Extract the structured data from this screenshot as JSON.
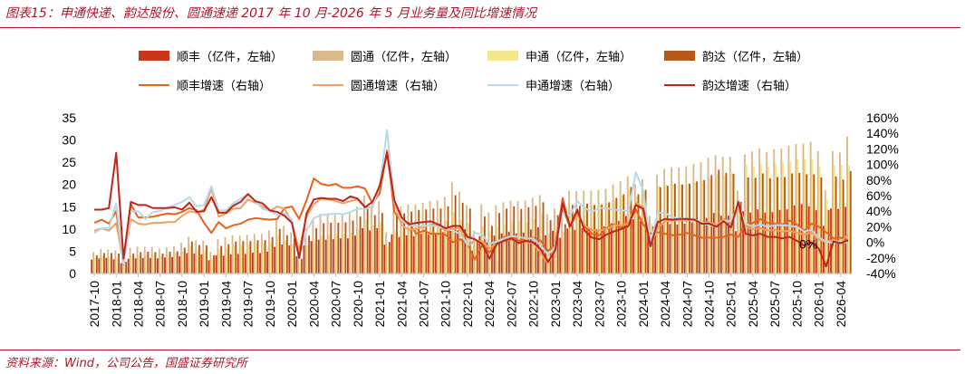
{
  "title": "图表15：申通快递、韵达股份、圆通速递 2017 年 10 月-2026 年 5 月业务量及同比增速情况",
  "source": "资料来源：Wind，公司公告，国盛证券研究所",
  "colors": {
    "sf_bar": "#c8361b",
    "yto_bar": "#d9b98a",
    "sto_bar": "#f5e58c",
    "yd_bar": "#b7571a",
    "sf_line": "#e8621c",
    "yto_line": "#f1a05a",
    "sto_line": "#b9d8ea",
    "yd_line": "#c0251b",
    "accent": "#b0162b"
  },
  "chart_data": {
    "type": "bar",
    "x": [
      "2017-10",
      "2017-11",
      "2017-12",
      "2018-01",
      "2018-02",
      "2018-03",
      "2018-04",
      "2018-05",
      "2018-06",
      "2018-07",
      "2018-08",
      "2018-09",
      "2018-10",
      "2018-11",
      "2018-12",
      "2019-01",
      "2019-02",
      "2019-03",
      "2019-04",
      "2019-05",
      "2019-06",
      "2019-07",
      "2019-08",
      "2019-09",
      "2019-10",
      "2019-11",
      "2019-12",
      "2020-01",
      "2020-02",
      "2020-03",
      "2020-04",
      "2020-05",
      "2020-06",
      "2020-07",
      "2020-08",
      "2020-09",
      "2020-10",
      "2020-11",
      "2020-12",
      "2021-01",
      "2021-02",
      "2021-03",
      "2021-04",
      "2021-05",
      "2021-06",
      "2021-07",
      "2021-08",
      "2021-09",
      "2021-10",
      "2021-11",
      "2021-12",
      "2022-01",
      "2022-02",
      "2022-03",
      "2022-04",
      "2022-05",
      "2022-06",
      "2022-07",
      "2022-08",
      "2022-09",
      "2022-10",
      "2022-11",
      "2022-12",
      "2023-01",
      "2023-02",
      "2023-03",
      "2023-04",
      "2023-05",
      "2023-06",
      "2023-07",
      "2023-08",
      "2023-09",
      "2023-10",
      "2023-11",
      "2023-12",
      "2024-01",
      "2024-02",
      "2024-03",
      "2024-04",
      "2024-05",
      "2024-06",
      "2024-07",
      "2024-08",
      "2024-09",
      "2024-10",
      "2024-11",
      "2024-12",
      "2025-01",
      "2025-02",
      "2025-03",
      "2025-04",
      "2025-05",
      "2025-06",
      "2025-07",
      "2025-08",
      "2025-09",
      "2025-10",
      "2025-11",
      "2025-12",
      "2026-01",
      "2026-02",
      "2026-03",
      "2026-04",
      "2026-05"
    ],
    "x_tick_labels": [
      "2017-10",
      "2018-01",
      "2018-04",
      "2018-07",
      "2018-10",
      "2019-01",
      "2019-04",
      "2019-07",
      "2019-10",
      "2020-01",
      "2020-04",
      "2020-07",
      "2020-10",
      "2021-01",
      "2021-04",
      "2021-07",
      "2021-10",
      "2022-01",
      "2022-04",
      "2022-07",
      "2022-10",
      "2023-01",
      "2023-04",
      "2023-07",
      "2023-10",
      "2024-01",
      "2024-04",
      "2024-07",
      "2024-10",
      "2025-01",
      "2025-04",
      "2025-07",
      "2025-10",
      "2026-01",
      "2026-04"
    ],
    "y_left": {
      "ylim": [
        0,
        35
      ],
      "ticks": [
        "0",
        "5",
        "10",
        "15",
        "20",
        "25",
        "30",
        "35"
      ]
    },
    "y_right": {
      "ylim": [
        -40,
        160
      ],
      "ticks": [
        "-40%",
        "-20%",
        "0%",
        "20%",
        "40%",
        "60%",
        "80%",
        "100%",
        "120%",
        "140%",
        "160%"
      ]
    },
    "annotation": "0%",
    "legend": {
      "placement": "top",
      "items": [
        {
          "label": "顺丰（亿件，左轴）",
          "kind": "bar",
          "color": "#c8361b"
        },
        {
          "label": "圆通（亿件，左轴）",
          "kind": "bar",
          "color": "#d9b98a"
        },
        {
          "label": "申通（亿件，左轴）",
          "kind": "bar",
          "color": "#f5e58c"
        },
        {
          "label": "韵达（亿件，左轴）",
          "kind": "bar",
          "color": "#b7571a"
        },
        {
          "label": "顺丰增速（右轴）",
          "kind": "line",
          "color": "#e8621c"
        },
        {
          "label": "圆通增速（右轴）",
          "kind": "line",
          "color": "#f1a05a"
        },
        {
          "label": "申通增速（右轴）",
          "kind": "line",
          "color": "#b9d8ea"
        },
        {
          "label": "韵达增速（右轴）",
          "kind": "line",
          "color": "#c0251b"
        }
      ]
    },
    "bar_series": [
      {
        "name": "顺丰（亿件，左轴）",
        "color": "#c8361b",
        "values": [
          3.1,
          3.4,
          3.5,
          3.2,
          2.3,
          3.3,
          3.4,
          3.5,
          3.5,
          3.4,
          3.6,
          3.7,
          3.9,
          4.6,
          4.5,
          4.3,
          3.0,
          4.1,
          4.0,
          4.3,
          4.4,
          4.4,
          4.7,
          4.6,
          4.9,
          6.0,
          6.5,
          6.3,
          3.9,
          6.3,
          7.3,
          7.6,
          7.6,
          7.7,
          7.9,
          7.9,
          8.5,
          10.2,
          9.7,
          10.2,
          6.5,
          8.8,
          8.2,
          8.6,
          8.4,
          8.9,
          8.8,
          8.8,
          9.3,
          10.2,
          9.7,
          10.0,
          5.1,
          8.4,
          7.1,
          8.5,
          9.0,
          9.4,
          9.0,
          9.2,
          9.9,
          10.4,
          8.6,
          9.6,
          8.0,
          10.1,
          9.8,
          10.2,
          10.0,
          10.0,
          10.6,
          11.3,
          11.8,
          12.9,
          12.2,
          11.8,
          8.9,
          11.4,
          10.9,
          11.1,
          11.0,
          11.2,
          11.5,
          11.3,
          12.5,
          13.6,
          13.0,
          13.0,
          9.5,
          14.0,
          13.7,
          14.4,
          13.7,
          13.8,
          14.3,
          14.4,
          15.3,
          15.6,
          15.1,
          14.2,
          10.7,
          14.6,
          14.5,
          15.0
        ]
      },
      {
        "name": "圆通（亿件，左轴）",
        "color": "#d9b98a",
        "values": [
          4.8,
          5.5,
          5.4,
          5.2,
          2.9,
          5.8,
          6.0,
          6.0,
          5.9,
          5.6,
          5.9,
          6.1,
          6.9,
          8.3,
          7.5,
          7.4,
          4.9,
          7.7,
          8.2,
          8.6,
          8.5,
          8.7,
          8.9,
          8.9,
          9.7,
          12.1,
          10.7,
          9.3,
          4.4,
          10.2,
          12.3,
          13.4,
          13.2,
          13.2,
          13.3,
          13.6,
          15.0,
          17.5,
          15.5,
          16.3,
          9.3,
          15.3,
          15.0,
          15.5,
          15.5,
          15.9,
          16.3,
          16.4,
          17.2,
          20.5,
          18.4,
          15.4,
          9.6,
          15.5,
          13.7,
          15.3,
          16.0,
          16.4,
          16.3,
          16.4,
          17.0,
          17.6,
          13.3,
          14.6,
          13.6,
          18.6,
          18.5,
          18.6,
          18.6,
          18.8,
          19.0,
          20.0,
          20.7,
          21.8,
          20.1,
          21.2,
          12.9,
          22.2,
          23.5,
          23.9,
          23.8,
          24.1,
          24.6,
          25.0,
          26.0,
          26.6,
          26.2,
          26.2,
          18.6,
          26.7,
          27.4,
          28.1,
          27.3,
          27.9,
          28.1,
          28.7,
          29.1,
          29.2,
          29.6,
          27.5,
          18.7,
          27.5,
          27.2,
          30.8
        ]
      },
      {
        "name": "申通（亿件，左轴）",
        "color": "#f5e58c",
        "values": [
          3.5,
          3.9,
          3.7,
          3.5,
          1.9,
          3.9,
          4.1,
          4.2,
          4.1,
          4.0,
          4.3,
          4.6,
          5.0,
          6.2,
          5.4,
          5.2,
          3.2,
          5.5,
          5.8,
          6.3,
          6.4,
          6.5,
          6.6,
          6.6,
          7.0,
          8.4,
          7.4,
          6.7,
          2.5,
          6.3,
          7.6,
          8.5,
          8.7,
          8.9,
          9.0,
          9.2,
          10.0,
          12.0,
          10.8,
          11.5,
          6.1,
          9.7,
          9.7,
          10.4,
          10.5,
          10.8,
          11.0,
          11.0,
          11.8,
          13.8,
          12.0,
          11.2,
          6.8,
          10.7,
          9.5,
          10.5,
          11.0,
          11.7,
          11.8,
          11.6,
          12.4,
          13.3,
          9.1,
          10.6,
          9.4,
          14.3,
          14.5,
          15.1,
          15.3,
          15.5,
          15.8,
          16.6,
          17.5,
          18.7,
          17.3,
          17.7,
          11.2,
          19.7,
          20.0,
          20.0,
          20.0,
          20.1,
          20.4,
          20.8,
          21.4,
          22.5,
          22.0,
          22.7,
          16.5,
          24.5,
          24.0,
          24.6,
          23.9,
          24.5,
          24.9,
          25.1,
          25.7,
          25.7,
          25.6,
          24.1,
          16.6,
          24.3,
          24.4,
          24.3
        ]
      },
      {
        "name": "韵达（亿件，左轴）",
        "color": "#b7571a",
        "values": [
          4.1,
          4.6,
          4.6,
          4.5,
          2.6,
          4.5,
          4.8,
          4.9,
          4.8,
          4.5,
          4.9,
          5.0,
          5.8,
          7.2,
          6.4,
          6.3,
          4.1,
          6.2,
          6.6,
          7.2,
          7.3,
          7.3,
          7.5,
          7.5,
          8.2,
          10.0,
          8.6,
          7.9,
          3.3,
          8.5,
          10.2,
          11.3,
          11.4,
          11.4,
          11.5,
          11.9,
          12.8,
          14.5,
          13.1,
          13.6,
          7.1,
          13.1,
          13.5,
          13.9,
          14.3,
          14.4,
          14.6,
          14.6,
          15.1,
          17.6,
          15.9,
          14.6,
          7.4,
          12.8,
          10.7,
          13.6,
          14.6,
          15.1,
          14.5,
          14.9,
          15.2,
          16.0,
          12.0,
          13.1,
          11.1,
          15.4,
          15.2,
          15.7,
          15.4,
          15.5,
          16.0,
          17.0,
          17.8,
          19.4,
          17.8,
          18.8,
          10.6,
          19.4,
          19.7,
          20.2,
          20.0,
          20.2,
          20.7,
          21.0,
          22.1,
          23.3,
          22.6,
          22.4,
          16.1,
          21.6,
          21.5,
          22.5,
          21.4,
          21.7,
          21.7,
          22.5,
          22.6,
          22.3,
          22.3,
          21.6,
          14.3,
          21.8,
          21.1,
          23.0
        ]
      }
    ],
    "line_series": [
      {
        "name": "顺丰增速（右轴）",
        "color": "#e8621c",
        "values": [
          25,
          29,
          24,
          40,
          -29,
          49,
          32,
          32,
          33,
          35,
          37,
          36,
          39,
          44,
          41,
          25,
          12,
          26,
          18,
          22,
          24,
          29,
          31,
          30,
          29,
          30,
          44,
          46,
          30,
          54,
          82,
          75,
          73,
          75,
          70,
          70,
          72,
          69,
          50,
          63,
          118,
          39,
          26,
          25,
          11,
          15,
          11,
          11,
          10,
          0,
          4,
          -2,
          -22,
          -4,
          -13,
          -1,
          7,
          7,
          2,
          5,
          6,
          2,
          -11,
          -4,
          57,
          20,
          38,
          20,
          11,
          9,
          18,
          23,
          19,
          24,
          42,
          23,
          11,
          13,
          11,
          9,
          10,
          12,
          9,
          6,
          6,
          6,
          7,
          10,
          7,
          23,
          25,
          30,
          25,
          24,
          23,
          28,
          23,
          15,
          24,
          20,
          13,
          5,
          6,
          1
        ]
      },
      {
        "name": "圆通增速（右轴）",
        "color": "#f1a05a",
        "values": [
          15,
          18,
          15,
          25,
          -26,
          30,
          24,
          23,
          25,
          25,
          26,
          26,
          34,
          40,
          38,
          42,
          69,
          33,
          37,
          43,
          44,
          55,
          51,
          46,
          40,
          46,
          43,
          26,
          -10,
          33,
          49,
          56,
          55,
          53,
          50,
          53,
          55,
          45,
          45,
          75,
          112,
          50,
          22,
          16,
          17,
          20,
          23,
          21,
          15,
          17,
          19,
          -6,
          3,
          1,
          -8,
          -1,
          3,
          3,
          0,
          0,
          -1,
          -14,
          -28,
          -5,
          42,
          20,
          35,
          22,
          16,
          15,
          17,
          22,
          22,
          24,
          51,
          45,
          -5,
          19,
          27,
          28,
          28,
          28,
          30,
          25,
          26,
          22,
          30,
          24,
          44,
          20,
          17,
          18,
          15,
          16,
          14,
          15,
          12,
          10,
          13,
          3,
          1,
          3,
          0,
          10
        ]
      },
      {
        "name": "申通增速（右轴）",
        "color": "#b9d8ea",
        "values": [
          12,
          18,
          18,
          50,
          -28,
          40,
          40,
          30,
          39,
          40,
          45,
          48,
          52,
          58,
          46,
          48,
          72,
          41,
          41,
          50,
          56,
          62,
          53,
          43,
          40,
          35,
          37,
          29,
          -22,
          15,
          31,
          35,
          36,
          37,
          36,
          39,
          43,
          43,
          46,
          71,
          144,
          54,
          28,
          22,
          21,
          21,
          22,
          20,
          18,
          15,
          11,
          -3,
          12,
          10,
          -2,
          1,
          5,
          8,
          7,
          5,
          5,
          -4,
          -16,
          -5,
          38,
          34,
          53,
          44,
          39,
          44,
          44,
          42,
          41,
          40,
          90,
          67,
          0,
          38,
          38,
          32,
          31,
          30,
          29,
          25,
          22,
          20,
          27,
          28,
          47,
          24,
          20,
          23,
          20,
          22,
          22,
          21,
          20,
          14,
          16,
          6,
          1,
          -1,
          2,
          -1
        ]
      },
      {
        "name": "韵达增速（右轴）",
        "color": "#c0251b",
        "values": [
          42,
          42,
          44,
          115,
          -21,
          52,
          48,
          48,
          44,
          44,
          44,
          45,
          42,
          51,
          39,
          40,
          58,
          38,
          38,
          47,
          52,
          62,
          53,
          50,
          41,
          39,
          34,
          25,
          -20,
          37,
          55,
          57,
          56,
          56,
          53,
          59,
          56,
          45,
          52,
          72,
          115,
          54,
          32,
          23,
          25,
          26,
          27,
          23,
          18,
          21,
          21,
          7,
          4,
          -2,
          -21,
          -2,
          2,
          5,
          -1,
          2,
          0,
          -9,
          -25,
          -10,
          50,
          20,
          42,
          15,
          6,
          4,
          10,
          14,
          17,
          21,
          48,
          43,
          -5,
          26,
          30,
          29,
          30,
          30,
          29,
          24,
          24,
          20,
          27,
          19,
          52,
          11,
          9,
          11,
          7,
          7,
          5,
          7,
          2,
          -4,
          0,
          -8,
          -31,
          1,
          -1,
          3
        ]
      }
    ]
  }
}
